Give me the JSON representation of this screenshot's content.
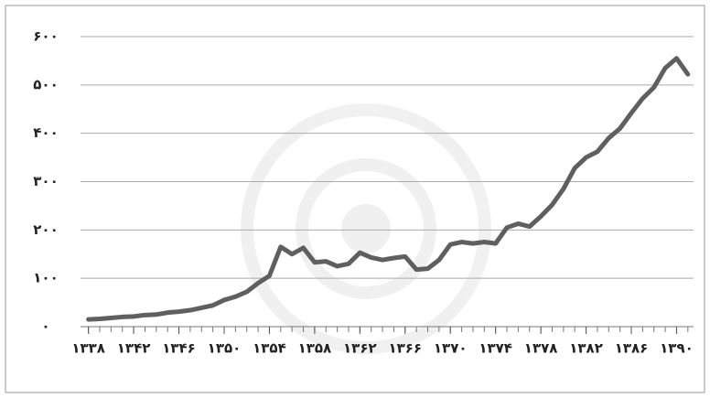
{
  "chart_data": {
    "type": "line",
    "x": [
      1338,
      1339,
      1340,
      1341,
      1342,
      1343,
      1344,
      1345,
      1346,
      1347,
      1348,
      1349,
      1350,
      1351,
      1352,
      1353,
      1354,
      1355,
      1356,
      1357,
      1358,
      1359,
      1360,
      1361,
      1362,
      1363,
      1364,
      1365,
      1366,
      1367,
      1368,
      1369,
      1370,
      1371,
      1372,
      1373,
      1374,
      1375,
      1376,
      1377,
      1378,
      1379,
      1380,
      1381,
      1382,
      1383,
      1384,
      1385,
      1386,
      1387,
      1388,
      1389,
      1390,
      1391
    ],
    "values": [
      15,
      16,
      18,
      20,
      21,
      24,
      25,
      29,
      31,
      34,
      39,
      44,
      55,
      62,
      72,
      90,
      105,
      165,
      150,
      163,
      133,
      135,
      125,
      130,
      153,
      143,
      138,
      142,
      145,
      118,
      120,
      138,
      170,
      175,
      172,
      175,
      172,
      205,
      213,
      207,
      228,
      252,
      285,
      328,
      350,
      362,
      390,
      410,
      442,
      472,
      495,
      535,
      555,
      522
    ],
    "color": "#5f5f5f",
    "xlim": [
      1337.3,
      1391.5
    ],
    "xticks": [
      {
        "value": 1338,
        "label": "۱۳۳۸"
      },
      {
        "value": 1342,
        "label": "۱۳۴۲"
      },
      {
        "value": 1346,
        "label": "۱۳۴۶"
      },
      {
        "value": 1350,
        "label": "۱۳۵۰"
      },
      {
        "value": 1354,
        "label": "۱۳۵۴"
      },
      {
        "value": 1358,
        "label": "۱۳۵۸"
      },
      {
        "value": 1362,
        "label": "۱۳۶۲"
      },
      {
        "value": 1366,
        "label": "۱۳۶۶"
      },
      {
        "value": 1370,
        "label": "۱۳۷۰"
      },
      {
        "value": 1374,
        "label": "۱۳۷۴"
      },
      {
        "value": 1378,
        "label": "۱۳۷۸"
      },
      {
        "value": 1382,
        "label": "۱۳۸۲"
      },
      {
        "value": 1386,
        "label": "۱۳۸۶"
      },
      {
        "value": 1390,
        "label": "۱۳۹۰"
      }
    ],
    "ylim": [
      0,
      600
    ],
    "yticks": [
      {
        "value": 0,
        "label": "۰"
      },
      {
        "value": 100,
        "label": "۱۰۰"
      },
      {
        "value": 200,
        "label": "۲۰۰"
      },
      {
        "value": 300,
        "label": "۳۰۰"
      },
      {
        "value": 400,
        "label": "۴۰۰"
      },
      {
        "value": 500,
        "label": "۵۰۰"
      },
      {
        "value": 600,
        "label": "۶۰۰"
      }
    ],
    "grid": true
  }
}
